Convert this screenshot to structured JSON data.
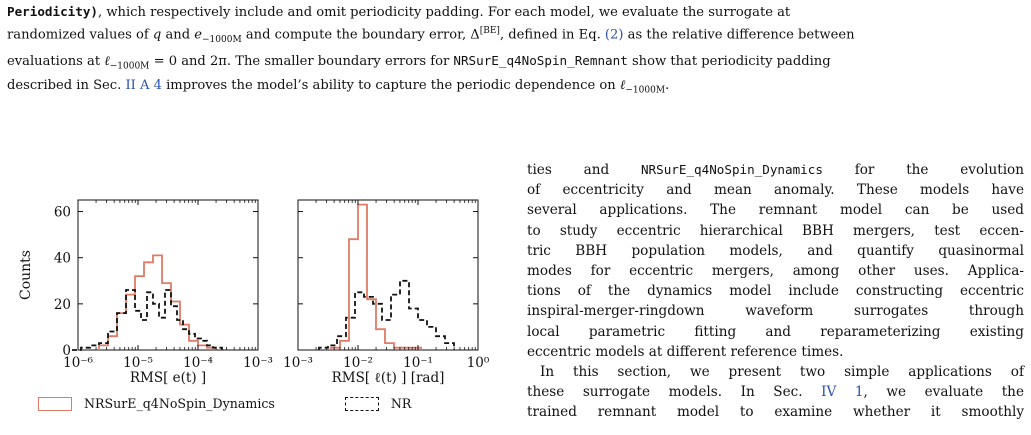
{
  "caption": {
    "line1_a": "Periodicity)",
    "line1_b": ", which respectively include and omit periodicity padding.  For each model, we evaluate the surrogate at",
    "line2_a": "randomized values of ",
    "line2_q": "q",
    "line2_b": " and ",
    "line2_e": "e",
    "line2_esub": "−1000M",
    "line2_c": " and compute the boundary error, Δ",
    "line2_sup": "[BE]",
    "line2_d": ", defined in Eq. ",
    "line2_eq": "(2)",
    "line2_e2": " as the relative difference between",
    "line3_a": "evaluations at ",
    "line3_l": "ℓ",
    "line3_lsub": "−1000M",
    "line3_b": " = 0 and 2π. The smaller boundary errors for ",
    "line3_model": "NRSurE_q4NoSpin_Remnant",
    "line3_c": " show that periodicity padding",
    "line4_a": "described in Sec. ",
    "line4_sec": "II A 4",
    "line4_b": " improves the model’s ability to capture the periodic dependence on ",
    "line4_l": "ℓ",
    "line4_lsub": "−1000M",
    "line4_end": "."
  },
  "body_text": {
    "l1_a": "ties and ",
    "l1_mono": "NRSurE_q4NoSpin_Dynamics",
    "l1_b": " for the evolution",
    "l2": "of eccentricity and mean anomaly.  These models have",
    "l3": "several applications.  The remnant model can be used",
    "l4": "to study eccentric hierarchical BBH mergers, test eccen-",
    "l5": "tric BBH population models, and quantify quasinormal",
    "l6": "modes for eccentric mergers, among other uses. Applica-",
    "l7": "tions of the dynamics model include constructing eccentric",
    "l8": "inspiral-merger-ringdown waveform surrogates through",
    "l9": "local parametric fitting and reparameterizing existing",
    "l10": "eccentric models at different reference times.",
    "l11": "In this section, we present two simple applications of",
    "l12_a": "these surrogate models.  In Sec. ",
    "l12_ref": "IV 1",
    "l12_b": ", we evaluate the",
    "l13": "trained remnant model to examine whether it smoothly"
  },
  "legend": {
    "surrogate": "NRSurE_q4NoSpin_Dynamics",
    "nr": "NR"
  },
  "colors": {
    "surrogate": "#e07b66",
    "nr": "#111111",
    "link": "#2a4fb0"
  },
  "chart_data": [
    {
      "type": "histogram",
      "xscale": "log",
      "xlim": [
        1e-06,
        0.001
      ],
      "ylim": [
        0,
        65
      ],
      "ylabel": "Counts",
      "xlabel": "RMS[ e(t) ]",
      "yticks": [
        "0",
        "20",
        "40",
        "60"
      ],
      "xticks": [
        "10⁻⁶",
        "10⁻⁵",
        "10⁻⁴",
        "10⁻³"
      ],
      "series": [
        {
          "name": "NRSurE_q4NoSpin_Dynamics",
          "style": "solid",
          "bin_edges_log10": [
            -5.65,
            -5.5,
            -5.35,
            -5.2,
            -5.05,
            -4.9,
            -4.75,
            -4.6,
            -4.45,
            -4.3,
            -4.15,
            -4.0,
            -3.85,
            -3.7
          ],
          "counts": [
            2,
            6,
            16,
            24,
            32,
            38,
            41,
            29,
            21,
            11,
            4,
            2,
            1
          ]
        },
        {
          "name": "NR",
          "style": "dashed",
          "bin_edges_log10": [
            -6.1,
            -5.95,
            -5.8,
            -5.65,
            -5.5,
            -5.35,
            -5.2,
            -5.05,
            -4.95,
            -4.85,
            -4.75,
            -4.65,
            -4.55,
            -4.45,
            -4.35,
            -4.25,
            -4.15,
            -4.05,
            -3.95,
            -3.85,
            -3.75,
            -3.6
          ],
          "counts": [
            0,
            1,
            2,
            3,
            8,
            16,
            26,
            17,
            13,
            25,
            20,
            14,
            26,
            19,
            13,
            9,
            7,
            5,
            4,
            2,
            1
          ]
        }
      ]
    },
    {
      "type": "histogram",
      "xscale": "log",
      "xlim": [
        0.001,
        1.0
      ],
      "ylim": [
        0,
        65
      ],
      "xlabel": "RMS[ ℓ(t) ] [rad]",
      "xticks": [
        "10⁻³",
        "10⁻²",
        "10⁻¹",
        "10⁰"
      ],
      "series": [
        {
          "name": "NRSurE_q4NoSpin_Dynamics",
          "style": "solid",
          "bin_edges_log10": [
            -2.45,
            -2.3,
            -2.15,
            -2.0,
            -1.85,
            -1.7,
            -1.55,
            -1.4,
            -1.25,
            -1.1,
            -0.95
          ],
          "counts": [
            1,
            4,
            48,
            63,
            22,
            9,
            3,
            1,
            1,
            1
          ]
        },
        {
          "name": "NR",
          "style": "dashed",
          "bin_edges_log10": [
            -2.65,
            -2.5,
            -2.35,
            -2.2,
            -2.05,
            -1.9,
            -1.75,
            -1.6,
            -1.45,
            -1.3,
            -1.15,
            -1.0,
            -0.85,
            -0.7,
            -0.55,
            -0.4
          ],
          "counts": [
            1,
            2,
            6,
            14,
            25,
            23,
            20,
            13,
            24,
            30,
            18,
            13,
            10,
            6,
            3
          ]
        }
      ]
    }
  ]
}
